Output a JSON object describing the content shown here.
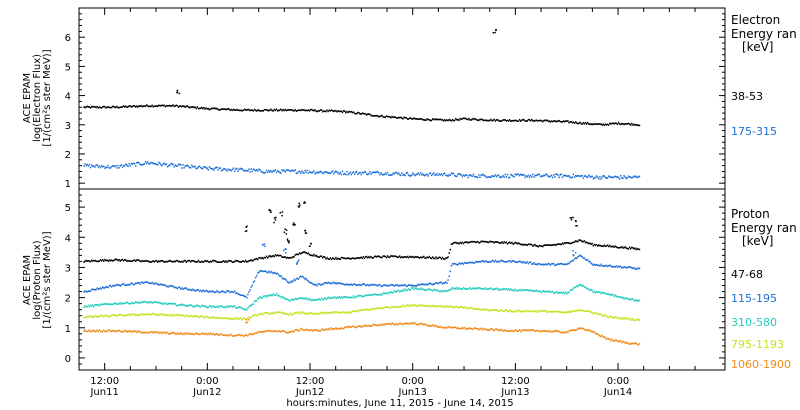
{
  "chart_data": {
    "type": "scatter",
    "xlabel": "hours:minutes, June 11, 2015 - June 14, 2015",
    "x_ticks": [
      {
        "hour": 12,
        "time": "12:00",
        "day": "Jun11"
      },
      {
        "hour": 24,
        "time": "0:00",
        "day": "Jun12"
      },
      {
        "hour": 36,
        "time": "12:00",
        "day": "Jun12"
      },
      {
        "hour": 48,
        "time": "0:00",
        "day": "Jun13"
      },
      {
        "hour": 60,
        "time": "12:00",
        "day": "Jun13"
      },
      {
        "hour": 72,
        "time": "0:00",
        "day": "Jun14"
      }
    ],
    "xlim_hours": [
      9,
      84.5
    ],
    "panels": [
      {
        "id": "electron",
        "ylabel_lines": [
          "ACE EPAM",
          "log(Electron Flux)",
          "[1/(cm²s ster MeV)]"
        ],
        "ylim": [
          0.8,
          7.0
        ],
        "yticks": [
          1,
          2,
          3,
          4,
          5,
          6
        ],
        "legend_title": [
          "Electron",
          "Energy ran"
        ],
        "legend_unit": "[keV]",
        "series": [
          {
            "name": "38-53",
            "color": "#000000",
            "x": [
              9.5,
              13,
              17,
              20,
              24,
              28,
              31,
              35,
              40,
              44,
              48,
              52,
              54,
              58,
              62,
              66,
              70,
              72,
              74.5
            ],
            "y": [
              3.6,
              3.6,
              3.65,
              3.65,
              3.55,
              3.5,
              3.5,
              3.5,
              3.45,
              3.3,
              3.2,
              3.15,
              3.2,
              3.15,
              3.15,
              3.1,
              3.0,
              3.05,
              3.0
            ]
          },
          {
            "name": "175-315",
            "color": "#1e6fd8",
            "x": [
              9.5,
              13,
              17,
              20,
              24,
              28,
              31,
              35,
              40,
              44,
              48,
              52,
              54,
              58,
              62,
              66,
              70,
              72,
              74.5
            ],
            "y": [
              1.6,
              1.55,
              1.7,
              1.6,
              1.5,
              1.45,
              1.4,
              1.4,
              1.35,
              1.35,
              1.3,
              1.3,
              1.25,
              1.25,
              1.25,
              1.25,
              1.2,
              1.2,
              1.2
            ]
          }
        ],
        "spikes": [
          {
            "x": 20.5,
            "y": 4.1,
            "series": "38-53"
          },
          {
            "x": 57.5,
            "y": 6.25,
            "series": "38-53"
          }
        ]
      },
      {
        "id": "proton",
        "ylabel_lines": [
          "ACE EPAM",
          "log(Proton Flux)",
          "[1/(cm²s ster MeV)]"
        ],
        "ylim": [
          -0.4,
          5.6
        ],
        "yticks": [
          0,
          1,
          2,
          3,
          4,
          5
        ],
        "legend_title": [
          "Proton",
          "Energy ran"
        ],
        "legend_unit": "[keV]",
        "series": [
          {
            "name": "47-68",
            "color": "#000000",
            "x": [
              9.5,
              13,
              17,
              21,
              24,
              27,
              28.5,
              30,
              32,
              33.5,
              35,
              36.5,
              38,
              40,
              44,
              48,
              52,
              52.5,
              56,
              60,
              63,
              66,
              67.5,
              69,
              71,
              73,
              74.5
            ],
            "y": [
              3.2,
              3.25,
              3.2,
              3.2,
              3.2,
              3.2,
              3.2,
              3.3,
              3.4,
              3.3,
              3.5,
              3.4,
              3.3,
              3.3,
              3.35,
              3.35,
              3.3,
              3.8,
              3.85,
              3.8,
              3.7,
              3.8,
              3.9,
              3.75,
              3.7,
              3.65,
              3.6
            ]
          },
          {
            "name": "115-195",
            "color": "#1e6fd8",
            "x": [
              9.5,
              13,
              17,
              21,
              24,
              27,
              28.5,
              30,
              32,
              33.5,
              35,
              36.5,
              38,
              40,
              44,
              48,
              52,
              52.5,
              56,
              60,
              63,
              66,
              67.5,
              69,
              71,
              73,
              74.5
            ],
            "y": [
              2.2,
              2.4,
              2.5,
              2.3,
              2.2,
              2.2,
              2.0,
              2.9,
              2.8,
              2.5,
              2.7,
              2.4,
              2.5,
              2.45,
              2.4,
              2.4,
              2.5,
              3.1,
              3.2,
              3.2,
              3.1,
              3.1,
              3.4,
              3.1,
              3.05,
              3.0,
              2.95
            ]
          },
          {
            "name": "310-580",
            "color": "#22ccbb",
            "x": [
              9.5,
              13,
              17,
              21,
              24,
              27,
              28.5,
              30,
              32,
              33.5,
              35,
              36.5,
              38,
              40,
              44,
              48,
              52,
              52.5,
              56,
              60,
              63,
              66,
              67.5,
              69,
              71,
              73,
              74.5
            ],
            "y": [
              1.7,
              1.8,
              1.85,
              1.75,
              1.7,
              1.7,
              1.6,
              2.0,
              2.1,
              1.9,
              2.0,
              1.9,
              2.0,
              2.0,
              2.1,
              2.3,
              2.2,
              2.3,
              2.3,
              2.25,
              2.2,
              2.15,
              2.45,
              2.2,
              2.1,
              1.95,
              1.9
            ]
          },
          {
            "name": "795-1193",
            "color": "#c8e020",
            "x": [
              9.5,
              13,
              17,
              21,
              24,
              27,
              28.5,
              30,
              32,
              33.5,
              35,
              36.5,
              38,
              40,
              44,
              48,
              52,
              52.5,
              56,
              60,
              63,
              66,
              67.5,
              69,
              71,
              73,
              74.5
            ],
            "y": [
              1.35,
              1.4,
              1.45,
              1.4,
              1.35,
              1.3,
              1.3,
              1.45,
              1.5,
              1.45,
              1.5,
              1.45,
              1.5,
              1.5,
              1.65,
              1.75,
              1.7,
              1.7,
              1.6,
              1.55,
              1.55,
              1.5,
              1.6,
              1.5,
              1.35,
              1.3,
              1.25
            ]
          },
          {
            "name": "1060-1900",
            "color": "#f08a1a",
            "x": [
              9.5,
              13,
              17,
              21,
              24,
              27,
              28.5,
              30,
              32,
              33.5,
              35,
              36.5,
              38,
              40,
              44,
              48,
              52,
              52.5,
              56,
              60,
              63,
              66,
              67.5,
              69,
              71,
              73,
              74.5
            ],
            "y": [
              0.9,
              0.9,
              0.85,
              0.8,
              0.8,
              0.75,
              0.75,
              0.85,
              0.9,
              0.85,
              0.95,
              0.9,
              0.95,
              1.0,
              1.1,
              1.15,
              1.0,
              1.0,
              0.95,
              0.9,
              0.9,
              0.85,
              1.0,
              0.85,
              0.6,
              0.5,
              0.45
            ]
          }
        ],
        "spikes": [
          {
            "x": 28.5,
            "y": 4.3,
            "series": "47-68"
          },
          {
            "x": 31.2,
            "y": 4.95,
            "series": "47-68"
          },
          {
            "x": 31.8,
            "y": 4.6,
            "series": "47-68"
          },
          {
            "x": 32.6,
            "y": 4.8,
            "series": "47-68"
          },
          {
            "x": 33.0,
            "y": 4.2,
            "series": "47-68"
          },
          {
            "x": 33.3,
            "y": 3.9,
            "series": "47-68"
          },
          {
            "x": 34.0,
            "y": 4.4,
            "series": "47-68"
          },
          {
            "x": 34.6,
            "y": 5.1,
            "series": "47-68"
          },
          {
            "x": 35.2,
            "y": 5.2,
            "series": "47-68"
          },
          {
            "x": 35.5,
            "y": 4.2,
            "series": "47-68"
          },
          {
            "x": 36.0,
            "y": 3.8,
            "series": "47-68"
          },
          {
            "x": 66.5,
            "y": 4.7,
            "series": "47-68"
          },
          {
            "x": 67.0,
            "y": 4.5,
            "series": "47-68"
          },
          {
            "x": 30.5,
            "y": 3.8,
            "series": "115-195"
          },
          {
            "x": 33.0,
            "y": 3.6,
            "series": "115-195"
          },
          {
            "x": 34.5,
            "y": 3.2,
            "series": "115-195"
          },
          {
            "x": 66.8,
            "y": 3.5,
            "series": "115-195"
          },
          {
            "x": 28.6,
            "y": 1.2,
            "series": "1060-1900"
          }
        ]
      }
    ]
  }
}
